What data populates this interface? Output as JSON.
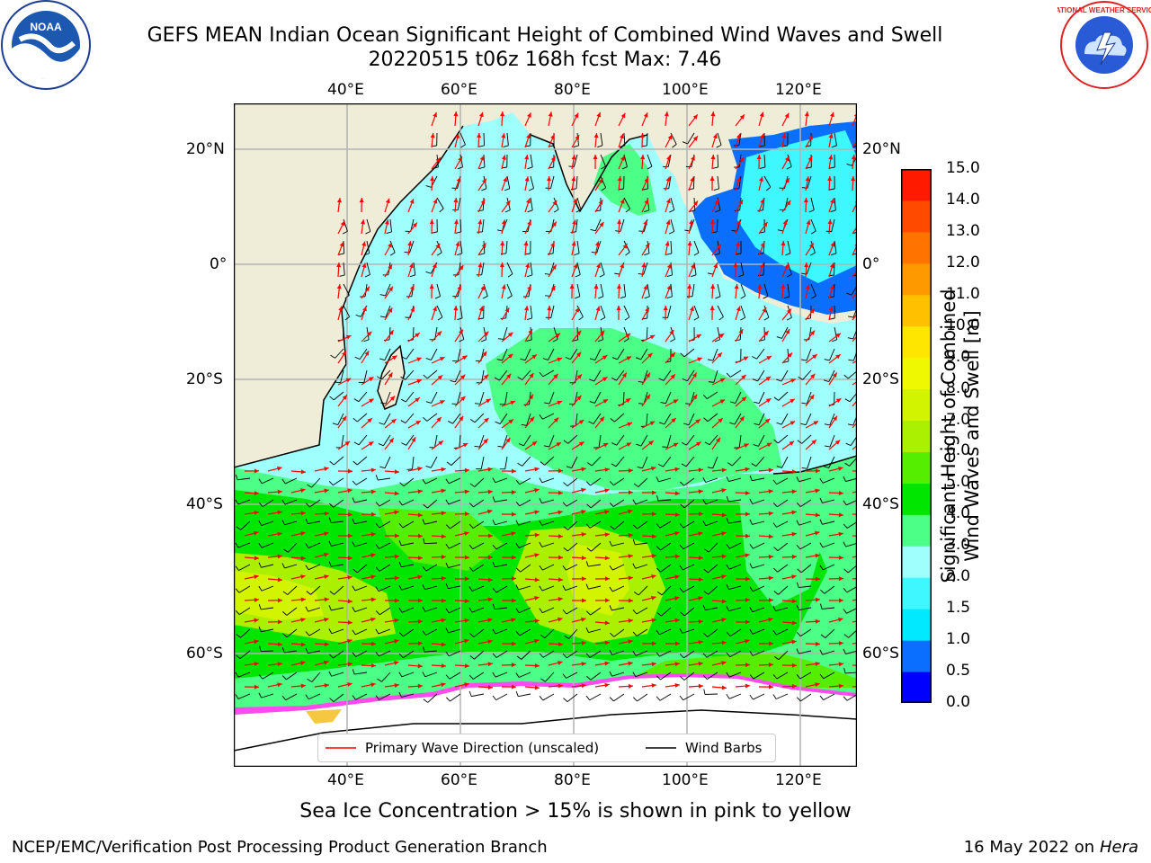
{
  "header": {
    "title_line1": "GEFS MEAN Indian Ocean Significant Height of Combined Wind Waves and Swell",
    "title_line2": "20220515 t06z 168h fcst   Max: 7.46"
  },
  "logos": {
    "left": {
      "name": "noaa-logo",
      "text": "NOAA"
    },
    "right": {
      "name": "nws-logo",
      "text": "NATIONAL WEATHER SERVICE"
    }
  },
  "map": {
    "lon_ticks": [
      "40°E",
      "60°E",
      "80°E",
      "100°E",
      "120°E"
    ],
    "lat_ticks": [
      "20°N",
      "0°",
      "20°S",
      "40°S",
      "60°S"
    ],
    "lon_range": [
      20,
      130
    ],
    "lat_range": [
      -78,
      28
    ],
    "land_color": "#efecd8",
    "ocean_base_color": "#9ffffd",
    "grid": true
  },
  "legend": {
    "primary_wave": "Primary Wave Direction (unscaled)",
    "wind_barbs": "Wind Barbs"
  },
  "colorbar": {
    "title_line1": "Significant Height of Combined",
    "title_line2": "Wind Waves and Swell [m]",
    "levels": [
      "0.0",
      "0.5",
      "1.0",
      "1.5",
      "2.0",
      "3.0",
      "4.0",
      "5.0",
      "6.0",
      "7.0",
      "8.0",
      "9.0",
      "10.0",
      "11.0",
      "12.0",
      "13.0",
      "14.0",
      "15.0"
    ],
    "colors": [
      "#0000ff",
      "#0a6fff",
      "#00e9ff",
      "#3ef7ff",
      "#9ffffd",
      "#4cff87",
      "#00e600",
      "#55ee00",
      "#aaf000",
      "#d3f400",
      "#f0f800",
      "#ffe600",
      "#ffc000",
      "#ff9900",
      "#ff7300",
      "#ff4a00",
      "#ff1a00"
    ]
  },
  "footer": {
    "note": "Sea Ice Concentration > 15% is shown in pink to yellow",
    "credit_left": "NCEP/EMC/Verification Post Processing Product Generation Branch",
    "credit_date": "16 May 2022 on",
    "credit_host": "Hera"
  }
}
